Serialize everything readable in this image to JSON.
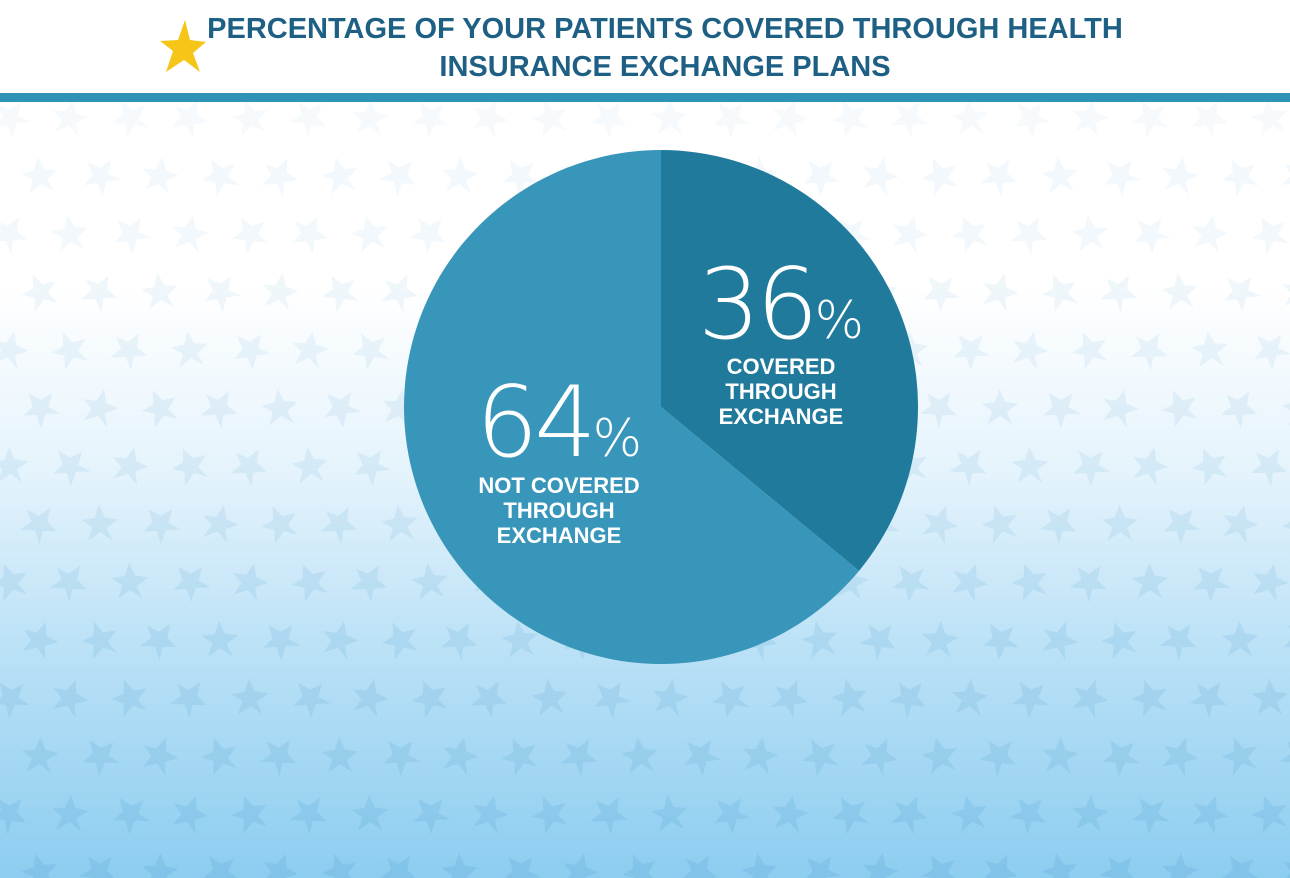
{
  "header": {
    "title_line1": "PERCENTAGE OF YOUR PATIENTS COVERED THROUGH HEALTH",
    "title_line2": "INSURANCE EXCHANGE PLANS"
  },
  "colors": {
    "title": "#1e5f84",
    "rule": "#2f93b5",
    "star": "#f5c518",
    "slice_covered": "#207a9c",
    "slice_not_covered": "#3896ba"
  },
  "icons": {
    "header_icon": "gold-star-icon",
    "background_pattern": "star-pattern"
  },
  "chart_data": {
    "type": "pie",
    "title": "PERCENTAGE OF YOUR PATIENTS COVERED THROUGH HEALTH INSURANCE EXCHANGE PLANS",
    "slices": [
      {
        "label": "COVERED THROUGH EXCHANGE",
        "label_lines": [
          "COVERED",
          "THROUGH",
          "EXCHANGE"
        ],
        "value": 36,
        "num": "36",
        "unit": "%",
        "color": "#207a9c"
      },
      {
        "label": "NOT COVERED THROUGH EXCHANGE",
        "label_lines": [
          "NOT COVERED",
          "THROUGH",
          "EXCHANGE"
        ],
        "value": 64,
        "num": "64",
        "unit": "%",
        "color": "#3896ba"
      }
    ]
  }
}
